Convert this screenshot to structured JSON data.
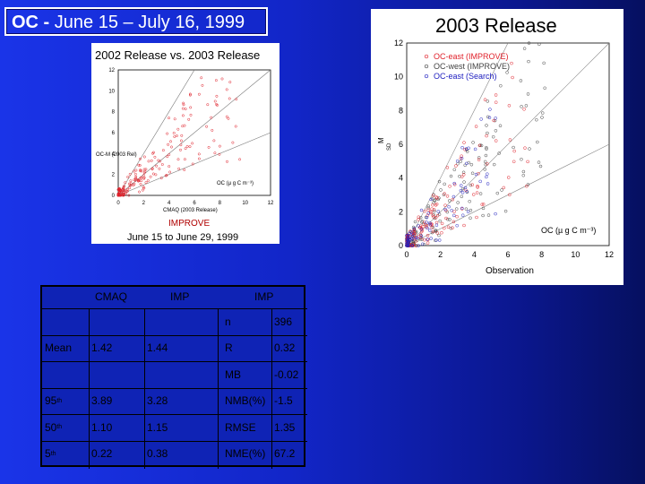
{
  "title": {
    "prefix": "OC - ",
    "dates": "June 15 –  July 16, 1999"
  },
  "small_chart": {
    "title": "2002 Release vs. 2003 Release",
    "caption": "June 15  to  June 29,  1999",
    "logo_text": "IMPROVE",
    "inner_label_top": "OC-M  (2003 Rel)",
    "oc_label": "OC (µ g C m⁻³)",
    "xlabel": "CMAQ (2003 Release)",
    "yticks": [
      "0",
      "2",
      "4",
      "6",
      "8",
      "10",
      "12"
    ],
    "xticks": [
      "0",
      "2",
      "4",
      "6",
      "8",
      "10",
      "12"
    ]
  },
  "large_chart": {
    "title": "2003 Release",
    "xlabel": "Observation",
    "ylabel": "M",
    "ylabel2": "SD",
    "oc_label": "OC (µ g C m⁻³)",
    "legend": [
      {
        "label": "OC-east (IMPROVE)",
        "color": "#e0202a"
      },
      {
        "label": "OC-west (IMPROVE)",
        "color": "#444444"
      },
      {
        "label": "OC-east (Search)",
        "color": "#2020c0"
      }
    ],
    "yticks": [
      "0",
      "2",
      "4",
      "6",
      "8",
      "10",
      "12"
    ],
    "xticks": [
      "0",
      "2",
      "4",
      "6",
      "8",
      "10",
      "12"
    ]
  },
  "table": {
    "headers": [
      "CMAQ",
      "IMP",
      "IMP"
    ],
    "stats_rows": [
      {
        "label": "",
        "cmaq": "",
        "imp": "",
        "stat": "n",
        "val": "396"
      },
      {
        "label": "Mean",
        "cmaq": "1.42",
        "imp": "1.44",
        "stat": "R",
        "val": "0.32"
      },
      {
        "label": "",
        "cmaq": "",
        "imp": "",
        "stat": "MB",
        "val": "-0.02"
      },
      {
        "label": "95",
        "sup": "th",
        "cmaq": "3.89",
        "imp": "3.28",
        "stat": "NMB(%)",
        "val": "-1.5"
      },
      {
        "label": "50",
        "sup": "th",
        "cmaq": "1.10",
        "imp": "1.15",
        "stat": "RMSE",
        "val": "1.35"
      },
      {
        "label": "5",
        "sup": "th",
        "cmaq": "0.22",
        "imp": "0.38",
        "stat": "NME(%)",
        "val": "67.2"
      }
    ]
  }
}
